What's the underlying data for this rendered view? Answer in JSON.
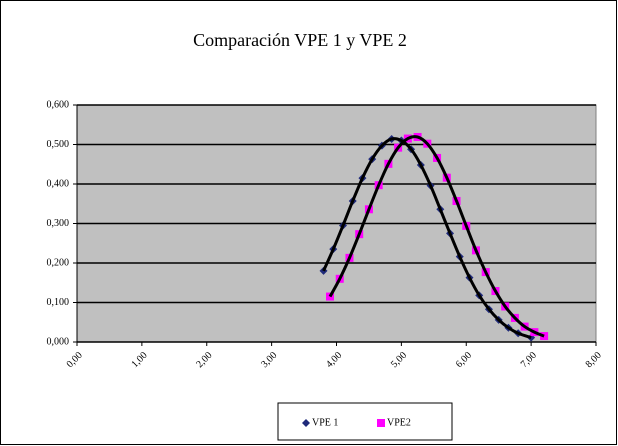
{
  "chart_data": {
    "type": "scatter",
    "title": "Comparación VPE 1 y VPE 2",
    "xlim": [
      0,
      8
    ],
    "xticks": [
      {
        "value": 0,
        "label": "0,00"
      },
      {
        "value": 1,
        "label": "1,00"
      },
      {
        "value": 2,
        "label": "2,00"
      },
      {
        "value": 3,
        "label": "3,00"
      },
      {
        "value": 4,
        "label": "4,00"
      },
      {
        "value": 5,
        "label": "5,00"
      },
      {
        "value": 6,
        "label": "6,00"
      },
      {
        "value": 7,
        "label": "7,00"
      },
      {
        "value": 8,
        "label": "8,00"
      }
    ],
    "ylim": [
      0,
      0.6
    ],
    "yticks": [
      {
        "value": 0,
        "label": "0,000"
      },
      {
        "value": 0.1,
        "label": "0,100"
      },
      {
        "value": 0.2,
        "label": "0,200"
      },
      {
        "value": 0.3,
        "label": "0,300"
      },
      {
        "value": 0.4,
        "label": "0,400"
      },
      {
        "value": 0.5,
        "label": "0,500"
      },
      {
        "value": 0.6,
        "label": "0,600"
      }
    ],
    "grid": true,
    "legend": "bottom",
    "line_color": "#000000",
    "series": [
      {
        "name": "VPE 1",
        "color": "#1f2a7a",
        "marker": "diamond",
        "x": [
          3.8,
          3.95,
          4.1,
          4.25,
          4.4,
          4.55,
          4.7,
          4.85,
          5.0,
          5.15,
          5.3,
          5.45,
          5.6,
          5.75,
          5.9,
          6.05,
          6.2,
          6.35,
          6.5,
          6.65,
          6.8,
          7.0
        ],
        "values": [
          0.18,
          0.235,
          0.295,
          0.357,
          0.415,
          0.463,
          0.497,
          0.514,
          0.51,
          0.488,
          0.448,
          0.396,
          0.336,
          0.275,
          0.216,
          0.163,
          0.118,
          0.083,
          0.056,
          0.036,
          0.022,
          0.011
        ]
      },
      {
        "name": "VPE2",
        "color": "#ff00ff",
        "marker": "square",
        "x": [
          3.9,
          4.05,
          4.2,
          4.35,
          4.5,
          4.65,
          4.8,
          4.95,
          5.1,
          5.25,
          5.4,
          5.55,
          5.7,
          5.85,
          6.0,
          6.15,
          6.3,
          6.45,
          6.6,
          6.75,
          6.9,
          7.05,
          7.2
        ],
        "values": [
          0.115,
          0.16,
          0.213,
          0.273,
          0.336,
          0.397,
          0.451,
          0.492,
          0.515,
          0.519,
          0.502,
          0.466,
          0.416,
          0.357,
          0.294,
          0.232,
          0.177,
          0.129,
          0.09,
          0.061,
          0.039,
          0.025,
          0.015
        ]
      }
    ]
  }
}
